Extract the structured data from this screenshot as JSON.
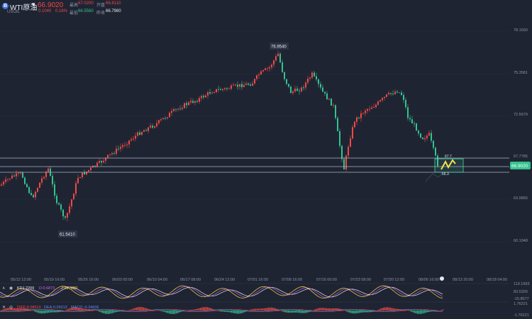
{
  "header": {
    "symbol_badge": "B",
    "symbol_name": "WTI原油",
    "current_price": "66.9020",
    "symbol_code": "USOIL",
    "change": "0.1040",
    "change_pct": "0.16%",
    "quotes": [
      {
        "label": "最高",
        "value": "67.0200",
        "tone": "red"
      },
      {
        "label": "开盘",
        "value": "66.8110",
        "tone": "red"
      },
      {
        "label": "最低",
        "value": "66.5560",
        "tone": "green"
      },
      {
        "label": "昨收",
        "value": "66.7980",
        "tone": "white"
      }
    ]
  },
  "price_axis": {
    "ticks": [
      "78.1500",
      "75.3581",
      "72.5679",
      "67.7785",
      "63.9856",
      "60.1948"
    ],
    "current_tag": "66.9020"
  },
  "annotations": {
    "high_label": "76.9540",
    "low_label": "61.5410",
    "pattern_top": "67.7",
    "pattern_bottom": "66.3"
  },
  "time_axis": {
    "labels": [
      "05/12 12:00",
      "05/19 16:00",
      "05/26 16:00",
      "06/03 00:00",
      "06/10 04:00",
      "06/17 08:00",
      "06/24 12:00",
      "07/01 16:00",
      "07/08 16:00",
      "07/16 00:00",
      "07/23 08:00",
      "07/30 12:00",
      "08/06 16:00",
      "08/13 20:00",
      "08/18 04:00"
    ]
  },
  "indicator1": {
    "legend": [
      "KDJ 2209",
      "D:0.6873",
      "J:35.3081"
    ],
    "axis": [
      "119.1993",
      "83.5326",
      "-15.8577"
    ]
  },
  "indicator2": {
    "legend": [
      "DIFF:0.08610",
      "DEA:0.26013",
      "MACD:-0.34606"
    ],
    "axis": [
      "1.76221",
      "-1.76221"
    ]
  },
  "colors": {
    "background": "#1f2433",
    "up": "#f04a45",
    "down": "#34c38f",
    "accent": "#46d7a4"
  },
  "chart_data": {
    "type": "candlestick",
    "x_range": [
      "05/12 12:00",
      "08/18 04:00"
    ],
    "y_range": [
      60.1948,
      78.15
    ],
    "high": 76.954,
    "low": 61.541,
    "last": 66.902,
    "horizontal_levels": [
      67.6,
      67.1,
      66.3
    ]
  }
}
